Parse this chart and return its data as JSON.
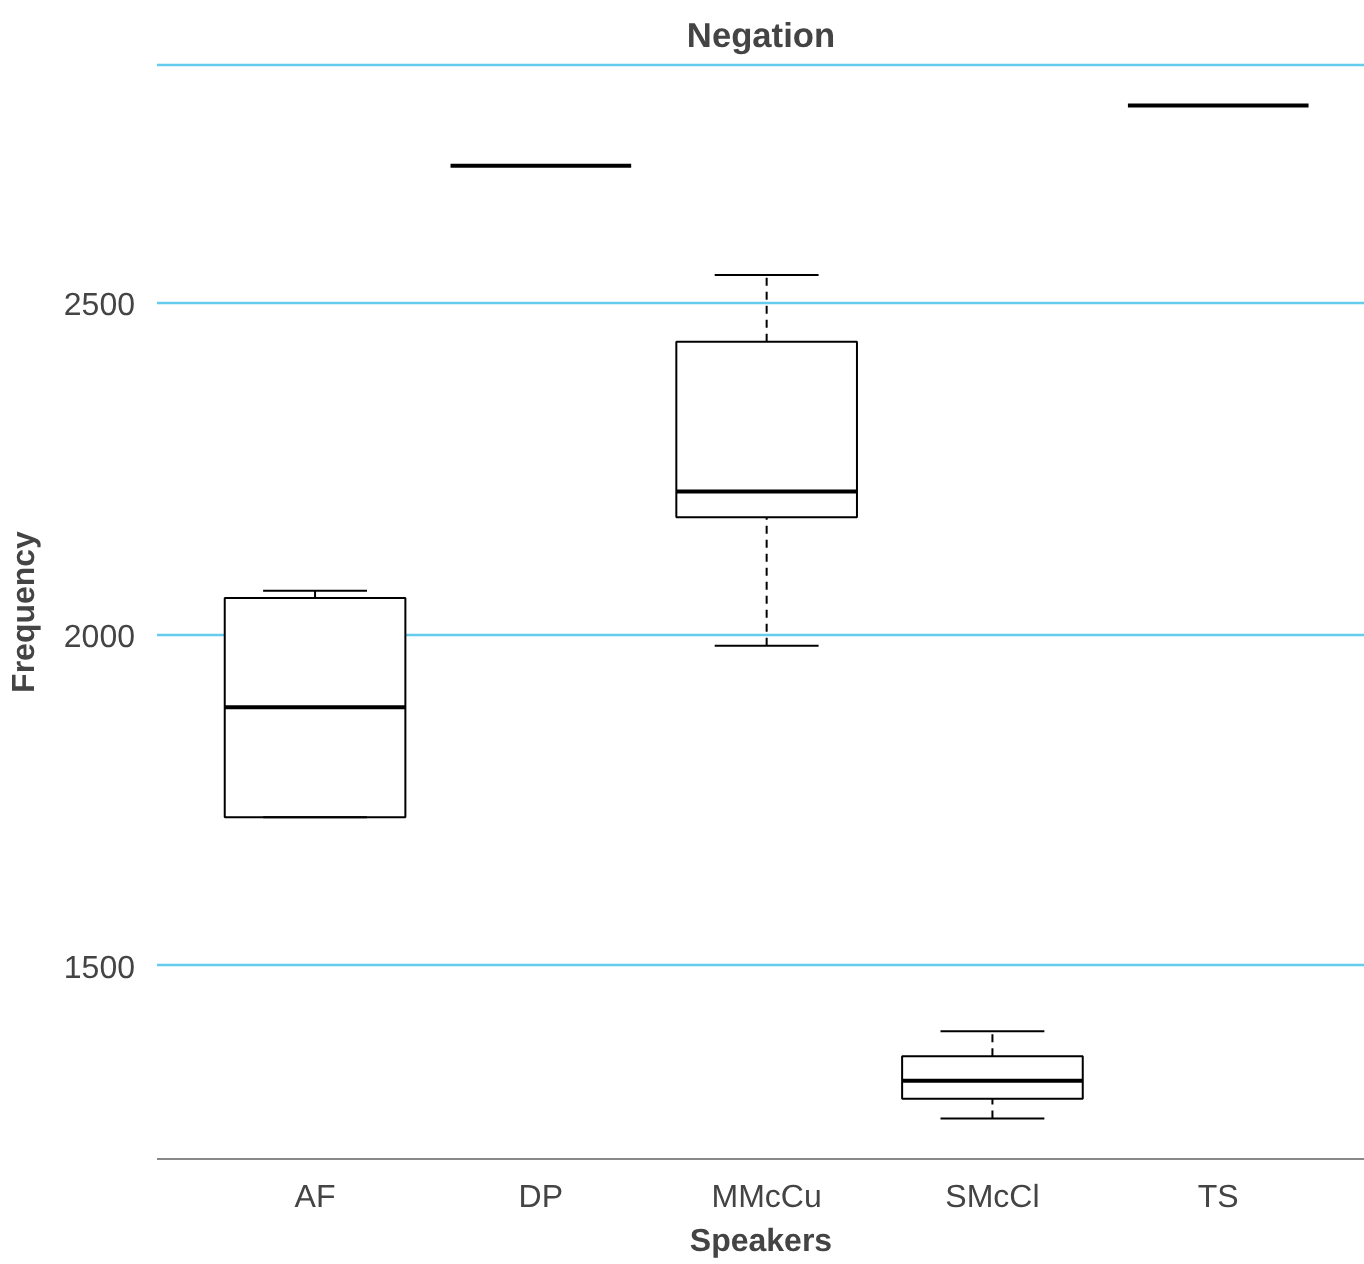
{
  "chart_data": {
    "type": "box",
    "title": "Negation",
    "xlabel": "Speakers",
    "ylabel": "Frequency",
    "categories": [
      "AF",
      "DP",
      "MMcCu",
      "SMcCl",
      "TS"
    ],
    "boxes": [
      {
        "low": 1724,
        "q1": 1724,
        "median": 1890,
        "q3": 2055,
        "high": 2066
      },
      {
        "low": 2708,
        "q1": 2708,
        "median": 2708,
        "q3": 2708,
        "high": 2708
      },
      {
        "low": 1983,
        "q1": 2177,
        "median": 2216,
        "q3": 2442,
        "high": 2543
      },
      {
        "low": 1269,
        "q1": 1299,
        "median": 1326,
        "q3": 1363,
        "high": 1401
      },
      {
        "low": 2799,
        "q1": 2799,
        "median": 2799,
        "q3": 2799,
        "high": 2799
      }
    ],
    "ylim": [
      1208,
      2860
    ],
    "yticks": [
      1500,
      2000,
      2500
    ],
    "grid": "y"
  }
}
